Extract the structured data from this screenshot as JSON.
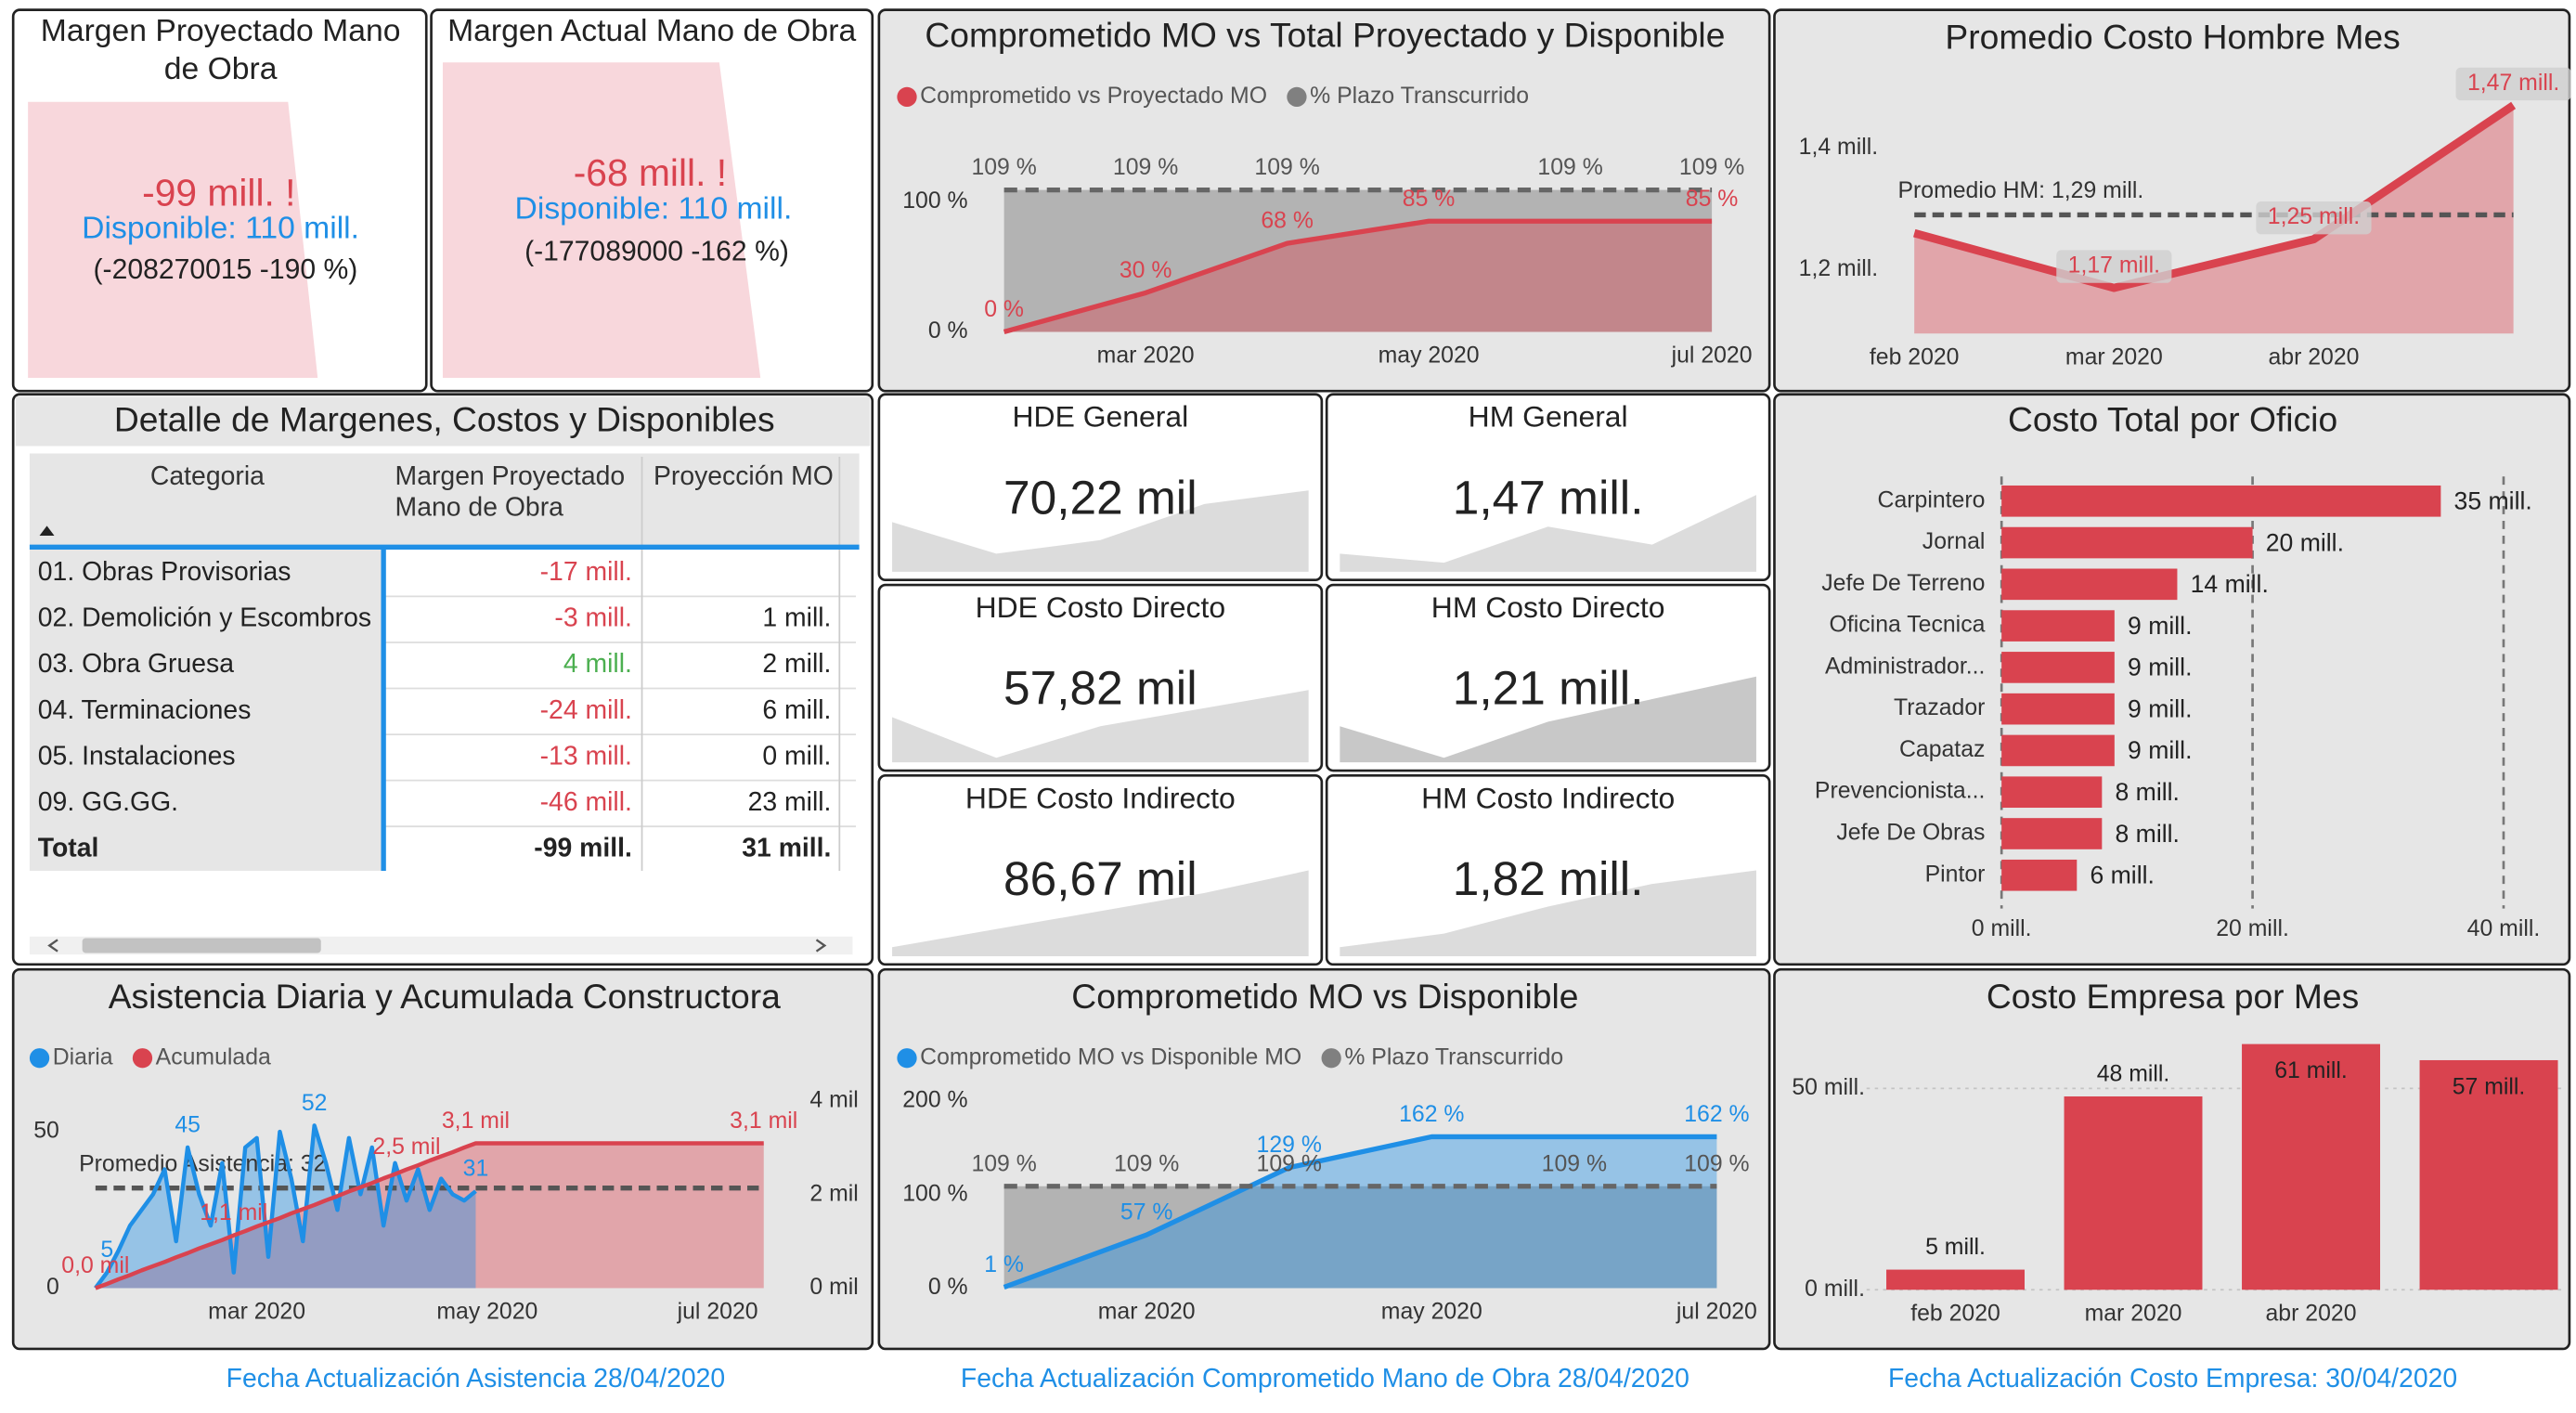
{
  "margin_cards": [
    {
      "title": "Margen Proyectado Mano de Obra",
      "value": "-99 mill. !",
      "available": "Disponible: 110 mill.",
      "detail": "(-208270015 -190 %)"
    },
    {
      "title": "Margen Actual Mano de Obra",
      "value": "-68 mill. !",
      "available": "Disponible: 110 mill.",
      "detail": "(-177089000 -162 %)"
    }
  ],
  "kpi_cards": [
    {
      "title": "HDE General",
      "value": "70,22 mil"
    },
    {
      "title": "HM General",
      "value": "1,47 mill."
    },
    {
      "title": "HDE Costo Directo",
      "value": "57,82 mil"
    },
    {
      "title": "HM Costo Directo",
      "value": "1,21 mill."
    },
    {
      "title": "HDE Costo Indirecto",
      "value": "86,67 mil"
    },
    {
      "title": "HM Costo Indirecto",
      "value": "1,82 mill."
    }
  ],
  "table": {
    "title": "Detalle de Margenes, Costos y Disponibles",
    "columns": [
      "Categoria",
      "Margen Proyectado Mano de Obra",
      "Proyección MO"
    ],
    "rows": [
      [
        "01. Obras Provisorias",
        "-17 mill.",
        null
      ],
      [
        "02. Demolición y Escombros",
        "-3 mill.",
        "1 mill."
      ],
      [
        "03. Obra Gruesa",
        "4 mill.",
        "2 mill."
      ],
      [
        "04. Terminaciones",
        "-24 mill.",
        "6 mill."
      ],
      [
        "05. Instalaciones",
        "-13 mill.",
        "0 mill."
      ],
      [
        "09. GG.GG.",
        "-46 mill.",
        "23 mill."
      ]
    ],
    "total": [
      "Total",
      "-99 mill.",
      "31 mill."
    ],
    "positive_color": "#4caf50",
    "negative_color": "#d9434f"
  },
  "chart_data": [
    {
      "type": "line",
      "title": "Comprometido MO vs Total Proyectado y Disponible",
      "categories": [
        null,
        "mar 2020",
        null,
        "may 2020",
        null,
        "jul 2020"
      ],
      "series": [
        {
          "name": "Comprometido vs Proyectado MO",
          "color": "#d9434f",
          "values": [
            0,
            30,
            68,
            85,
            85,
            85
          ],
          "value_labels": [
            "0 %",
            "30 %",
            "68 %",
            "85 %",
            null,
            "85 %"
          ],
          "area": true
        },
        {
          "name": "% Plazo Transcurrido",
          "color": "#808080",
          "values": [
            109,
            109,
            109,
            109,
            109,
            109
          ],
          "value_labels": [
            "109 %",
            "109 %",
            "109 %",
            null,
            "109 %",
            "109 %"
          ],
          "dashed": true,
          "area": true,
          "label_color": "#555555"
        }
      ],
      "ylim": [
        0,
        135
      ],
      "yticks": [
        {
          "value": 0,
          "label": "0 %"
        },
        {
          "value": 100,
          "label": "100 %"
        }
      ],
      "legend": "top-left"
    },
    {
      "type": "line",
      "title": "Promedio Costo Hombre Mes",
      "categories": [
        "feb 2020",
        "mar 2020",
        "abr 2020",
        null
      ],
      "series": [
        {
          "color": "#d9434f",
          "values": [
            1.26,
            1.17,
            1.25,
            1.47
          ],
          "value_labels": [
            null,
            "1,17 mill.",
            "1,25 mill.",
            "1,47 mill."
          ],
          "area": true,
          "label_box": "#cfcfcf"
        }
      ],
      "ylim": [
        1.095,
        1.52
      ],
      "yticks": [
        {
          "value": 1.2,
          "label": "1,2 mill."
        },
        {
          "value": 1.4,
          "label": "1,4 mill."
        }
      ],
      "reference": {
        "value": 1.29,
        "label": "Promedio HM: 1,29 mill."
      }
    },
    {
      "type": "bar",
      "orientation": "horizontal",
      "title": "Costo Total por Oficio",
      "categories": [
        "Carpintero",
        "Jornal",
        "Jefe De Terreno",
        "Oficina Tecnica",
        "Administrador...",
        "Trazador",
        "Capataz",
        "Prevencionista...",
        "Jefe De Obras",
        "Pintor"
      ],
      "values": [
        35,
        20,
        14,
        9,
        9,
        9,
        9,
        8,
        8,
        6
      ],
      "value_labels": [
        "35 mill.",
        "20 mill.",
        "14 mill.",
        "9 mill.",
        "9 mill.",
        "9 mill.",
        "9 mill.",
        "8 mill.",
        "8 mill.",
        "6 mill."
      ],
      "color": "#d9434f",
      "xlim": [
        0,
        40
      ],
      "xticks": [
        {
          "value": 0,
          "label": "0 mill."
        },
        {
          "value": 20,
          "label": "20 mill."
        },
        {
          "value": 40,
          "label": "40 mill."
        }
      ],
      "grid": true
    },
    {
      "type": "line",
      "title": "Asistencia Diaria y Acumulada Constructora",
      "categories": [
        null,
        null,
        null,
        null,
        null,
        null,
        null,
        null,
        null,
        null,
        null,
        null,
        null,
        null,
        "mar 2020",
        null,
        null,
        null,
        null,
        null,
        null,
        null,
        null,
        null,
        null,
        null,
        null,
        null,
        null,
        null,
        null,
        null,
        null,
        null,
        "may 2020",
        null,
        null,
        null,
        null,
        null,
        null,
        null,
        null,
        null,
        null,
        null,
        null,
        null,
        null,
        null,
        null,
        null,
        null,
        null,
        "jul 2020",
        null,
        null,
        null,
        null
      ],
      "series": [
        {
          "name": "Diaria",
          "color": "#1f8fe6",
          "values": [
            0,
            5,
            12,
            20,
            25,
            30,
            38,
            15,
            45,
            30,
            20,
            40,
            5,
            45,
            48,
            10,
            50,
            35,
            15,
            52,
            40,
            25,
            48,
            30,
            45,
            20,
            40,
            28,
            38,
            25,
            35,
            30,
            28,
            31,
            null,
            null,
            null,
            null,
            null,
            null,
            null,
            null,
            null,
            null,
            null,
            null,
            null,
            null,
            null,
            null,
            null,
            null,
            null,
            null,
            null,
            null,
            null,
            null,
            null
          ],
          "value_labels": [
            null,
            "5",
            null,
            null,
            null,
            null,
            null,
            null,
            "45",
            null,
            null,
            null,
            null,
            null,
            null,
            null,
            null,
            null,
            null,
            "52",
            null,
            null,
            null,
            null,
            null,
            null,
            null,
            null,
            null,
            null,
            null,
            null,
            null,
            "31",
            null,
            null,
            null,
            null,
            null,
            null,
            null,
            null,
            null,
            null,
            null,
            null,
            null,
            null,
            null,
            null,
            null,
            null,
            null,
            null,
            null,
            null,
            null,
            null,
            null
          ],
          "area": true
        },
        {
          "name": "Acumulada",
          "color": "#d9434f",
          "axis": "y2",
          "values": [
            0,
            0.09,
            0.19,
            0.28,
            0.38,
            0.47,
            0.56,
            0.66,
            0.75,
            0.85,
            0.94,
            1.03,
            1.13,
            1.22,
            1.32,
            1.41,
            1.5,
            1.6,
            1.69,
            1.78,
            1.88,
            1.97,
            2.07,
            2.16,
            2.25,
            2.35,
            2.44,
            2.54,
            2.63,
            2.73,
            2.82,
            2.91,
            3.01,
            3.1,
            3.1,
            3.1,
            3.1,
            3.1,
            3.1,
            3.1,
            3.1,
            3.1,
            3.1,
            3.1,
            3.1,
            3.1,
            3.1,
            3.1,
            3.1,
            3.1,
            3.1,
            3.1,
            3.1,
            3.1,
            3.1,
            3.1,
            3.1,
            3.1,
            3.1
          ],
          "value_labels": [
            "0,0 mil",
            null,
            null,
            null,
            null,
            null,
            null,
            null,
            null,
            null,
            null,
            null,
            "1,1 mil",
            null,
            null,
            null,
            null,
            null,
            null,
            null,
            null,
            null,
            null,
            null,
            null,
            null,
            null,
            "2,5 mil",
            null,
            null,
            null,
            null,
            null,
            "3,1 mil",
            null,
            null,
            null,
            null,
            null,
            null,
            null,
            null,
            null,
            null,
            null,
            null,
            null,
            null,
            null,
            null,
            null,
            null,
            null,
            null,
            null,
            null,
            null,
            null,
            "3,1 mil"
          ],
          "area": true
        }
      ],
      "ylim": [
        0,
        62
      ],
      "yticks": [
        0,
        50
      ],
      "y2lim": [
        0,
        4.15
      ],
      "y2ticks": [
        {
          "value": 0,
          "label": "0 mil"
        },
        {
          "value": 2,
          "label": "2 mil"
        },
        {
          "value": 4,
          "label": "4 mil"
        }
      ],
      "reference": {
        "value": 32,
        "label": "Promedio Asistencia: 32"
      },
      "legend": "top-left"
    },
    {
      "type": "line",
      "title": "Comprometido MO vs Disponible",
      "categories": [
        null,
        "mar 2020",
        null,
        "may 2020",
        null,
        "jul 2020"
      ],
      "series": [
        {
          "name": "Comprometido MO vs Disponible MO",
          "color": "#1f8fe6",
          "values": [
            1,
            57,
            129,
            162,
            162,
            162
          ],
          "value_labels": [
            "1 %",
            "57 %",
            "129 %",
            "162 %",
            null,
            "162 %"
          ],
          "area": true
        },
        {
          "name": "% Plazo Transcurrido",
          "color": "#808080",
          "values": [
            109,
            109,
            109,
            109,
            109,
            109
          ],
          "value_labels": [
            "109 %",
            "109 %",
            "109 %",
            null,
            "109 %",
            "109 %"
          ],
          "dashed": true,
          "area": true,
          "label_color": "#555555"
        }
      ],
      "ylim": [
        0,
        218
      ],
      "yticks": [
        {
          "value": 0,
          "label": "0 %"
        },
        {
          "value": 100,
          "label": "100 %"
        },
        {
          "value": 200,
          "label": "200 %"
        }
      ],
      "legend": "top-left"
    },
    {
      "type": "bar",
      "orientation": "vertical",
      "title": "Costo Empresa por Mes",
      "categories": [
        "feb 2020",
        "mar 2020",
        "abr 2020",
        null
      ],
      "values": [
        5,
        48,
        61,
        57
      ],
      "value_labels": [
        "5 mill.",
        "48 mill.",
        "61 mill.",
        "57 mill."
      ],
      "color": "#d9434f",
      "ylim": [
        0,
        62
      ],
      "yticks": [
        {
          "value": 0,
          "label": "0 mill."
        },
        {
          "value": 50,
          "label": "50 mill."
        }
      ],
      "grid": true
    }
  ],
  "footer": [
    "Fecha Actualización Asistencia 28/04/2020",
    "Fecha Actualización Comprometido Mano de Obra 28/04/2020",
    "Fecha Actualización Costo Empresa: 30/04/2020"
  ]
}
